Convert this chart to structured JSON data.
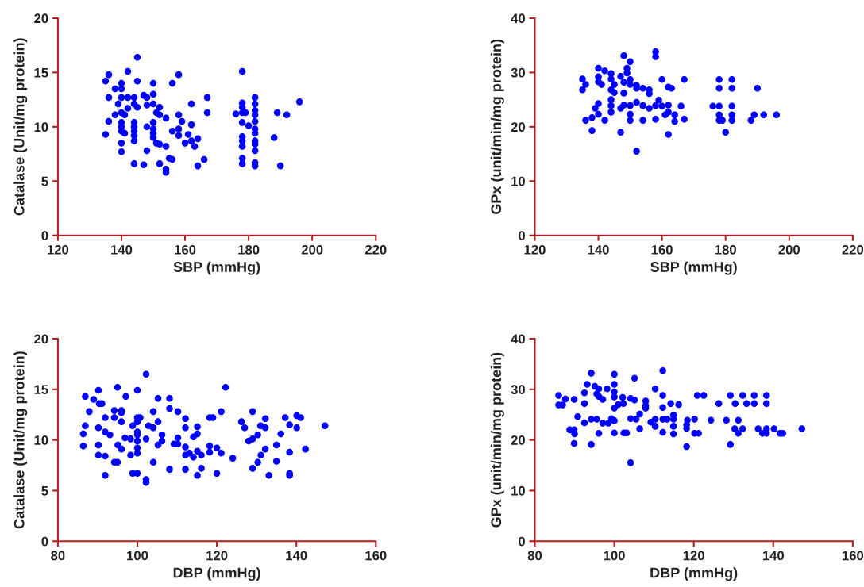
{
  "chart_data": [
    {
      "type": "scatter",
      "xlabel": "SBP (mmHg)",
      "ylabel": "Catalase (Unit/mg protein)",
      "color": "#0000ff",
      "marker": "circle",
      "xlim": [
        120,
        220
      ],
      "ylim": [
        0,
        20
      ],
      "xticks": [
        120,
        140,
        160,
        180,
        200,
        220
      ],
      "yticks": [
        0,
        5,
        10,
        15,
        20
      ],
      "x": [
        145,
        136,
        142,
        135,
        140,
        145,
        150,
        156,
        158,
        138,
        140,
        136,
        140,
        142,
        144,
        147,
        148,
        150,
        167,
        139,
        144,
        145,
        142,
        148,
        150,
        152,
        162,
        138,
        140,
        141,
        151,
        152,
        154,
        158,
        167,
        136,
        140,
        140,
        144,
        144,
        144,
        144,
        144,
        140,
        141,
        135,
        148,
        150,
        150,
        150,
        150,
        156,
        158,
        158,
        159,
        162,
        161,
        160,
        162,
        164,
        163,
        140,
        140,
        151,
        148,
        152,
        154,
        144,
        147,
        152,
        155,
        156,
        154,
        154,
        164,
        166,
        178,
        178,
        178,
        178,
        176,
        179,
        178,
        180,
        178,
        178,
        178,
        178,
        178,
        182,
        182,
        182,
        182,
        182,
        182,
        182,
        182,
        182,
        182,
        182,
        182,
        189,
        192,
        196,
        188,
        190
      ],
      "values": [
        16.4,
        14.8,
        15.1,
        14.2,
        14.0,
        14.2,
        14.0,
        14.0,
        14.8,
        13.5,
        13.5,
        12.7,
        12.7,
        12.7,
        12.7,
        12.9,
        12.7,
        13.0,
        12.7,
        12.1,
        12.1,
        11.8,
        11.7,
        12.0,
        12.1,
        11.8,
        12.1,
        11.1,
        11.3,
        11.1,
        11.3,
        11.1,
        10.8,
        11.1,
        11.3,
        10.5,
        10.4,
        10.0,
        10.4,
        10.0,
        9.6,
        9.2,
        8.7,
        9.6,
        9.4,
        9.3,
        10.0,
        10.4,
        9.8,
        9.4,
        9.0,
        9.6,
        9.8,
        9.2,
        10.5,
        10.2,
        9.3,
        8.5,
        8.7,
        8.9,
        8.2,
        8.5,
        7.7,
        8.5,
        7.8,
        8.4,
        8.2,
        6.6,
        6.5,
        6.6,
        7.1,
        7.0,
        6.1,
        5.8,
        6.4,
        7.0,
        15.1,
        12.2,
        11.8,
        11.3,
        11.2,
        11.3,
        10.4,
        10.1,
        9.1,
        8.7,
        8.2,
        7.1,
        6.6,
        12.7,
        12.1,
        11.5,
        11.1,
        10.5,
        9.8,
        9.4,
        8.7,
        8.4,
        7.8,
        6.7,
        6.4,
        11.3,
        11.1,
        12.3,
        9.0,
        6.4
      ]
    },
    {
      "type": "scatter",
      "xlabel": "SBP (mmHg)",
      "ylabel": "GPx (unit/min/mg protein)",
      "color": "#0000ff",
      "marker": "circle",
      "xlim": [
        120,
        220
      ],
      "ylim": [
        0,
        40
      ],
      "xticks": [
        120,
        140,
        160,
        180,
        200,
        220
      ],
      "yticks": [
        0,
        10,
        20,
        30,
        40
      ],
      "x": [
        158,
        158,
        148,
        150,
        140,
        142,
        144,
        149,
        149,
        147,
        135,
        140,
        140,
        141,
        144,
        145,
        148,
        150,
        150,
        152,
        152,
        154,
        156,
        156,
        160,
        162,
        163,
        167,
        135,
        136,
        144,
        145,
        148,
        140,
        139,
        140,
        138,
        136,
        142,
        144,
        144,
        144,
        147,
        148,
        150,
        152,
        150,
        150,
        154,
        156,
        158,
        159,
        160,
        162,
        161,
        162,
        164,
        164,
        166,
        167,
        158,
        154,
        138,
        147,
        162,
        152,
        178,
        178,
        176,
        178,
        178,
        178,
        179,
        180,
        182,
        182,
        182,
        182,
        182,
        190,
        188,
        189,
        192,
        196
      ],
      "values": [
        33.8,
        32.9,
        33.1,
        32.0,
        30.8,
        30.3,
        29.8,
        30.8,
        29.9,
        29.3,
        28.8,
        29.2,
        28.3,
        27.8,
        28.8,
        27.8,
        28.2,
        28.7,
        27.8,
        27.6,
        27.1,
        27.1,
        26.8,
        26.1,
        28.7,
        27.3,
        27.1,
        28.7,
        26.8,
        27.8,
        26.8,
        26.3,
        26.2,
        24.3,
        23.4,
        22.3,
        21.7,
        21.2,
        21.2,
        25.0,
        23.9,
        22.7,
        23.4,
        24.0,
        23.9,
        24.5,
        22.3,
        21.2,
        23.9,
        23.4,
        23.9,
        24.9,
        23.8,
        24.0,
        22.2,
        22.7,
        22.2,
        21.0,
        23.8,
        21.4,
        21.4,
        21.2,
        19.3,
        19.0,
        18.6,
        15.5,
        28.7,
        27.1,
        23.8,
        23.8,
        22.2,
        21.2,
        21.2,
        19.0,
        28.7,
        27.1,
        23.8,
        22.2,
        21.2,
        27.1,
        21.2,
        22.2,
        22.2,
        22.2
      ]
    },
    {
      "type": "scatter",
      "xlabel": "DBP (mmHg)",
      "ylabel": "Catalase (Unit/mg protein)",
      "color": "#0000ff",
      "marker": "circle",
      "xlim": [
        80,
        160
      ],
      "ylim": [
        0,
        20
      ],
      "xticks": [
        80,
        100,
        120,
        140,
        160
      ],
      "yticks": [
        0,
        5,
        10,
        15,
        20
      ],
      "x": [
        102.2,
        95,
        100,
        90.2,
        122.2,
        86.9,
        89,
        97.1,
        90.4,
        91.1,
        105.2,
        108.1,
        87.9,
        94.2,
        96,
        96,
        108.1,
        110.2,
        104,
        121.1,
        129,
        91.9,
        94.2,
        96,
        100,
        100.7,
        100,
        112.1,
        118.2,
        119,
        132.2,
        137.2,
        140.1,
        141.1,
        86.9,
        90.2,
        98.8,
        102.8,
        104,
        105.2,
        112.1,
        115.1,
        126.2,
        127,
        131,
        132.2,
        138.3,
        140.1,
        147.2,
        86.4,
        91.9,
        93.1,
        100,
        100,
        100,
        96.9,
        98.3,
        102.2,
        106.2,
        106.2,
        110.2,
        109.2,
        110.2,
        114.1,
        115.1,
        130.3,
        129,
        128,
        136.1,
        86.4,
        90.2,
        95.1,
        96,
        100,
        100,
        105.2,
        112.1,
        115.1,
        118.2,
        118.2,
        120,
        121.1,
        132.2,
        135,
        138.3,
        142.3,
        90.2,
        91.9,
        98.3,
        112.1,
        113.1,
        114.1,
        116.1,
        131.1,
        124,
        94.2,
        95,
        104,
        130.3,
        135,
        91.9,
        98.8,
        100,
        102.2,
        102.2,
        108.1,
        112.1,
        116.1,
        115.1,
        120,
        129,
        133.1,
        138.3,
        138.3
      ],
      "values": [
        16.5,
        15.2,
        14.9,
        14.9,
        15.2,
        14.3,
        14.0,
        14.3,
        13.6,
        13.6,
        14.1,
        14.1,
        12.8,
        12.9,
        12.9,
        12.7,
        13.1,
        12.8,
        12.8,
        12.8,
        12.8,
        12.2,
        12.2,
        11.8,
        12.2,
        12.2,
        11.8,
        12.1,
        12.2,
        12.2,
        12.1,
        12.2,
        12.4,
        12.2,
        11.4,
        11.2,
        11.4,
        11.4,
        11.2,
        11.8,
        11.2,
        11.3,
        11.8,
        11.2,
        11.4,
        11.2,
        11.5,
        11.2,
        11.4,
        10.6,
        10.8,
        10.5,
        10.8,
        10.5,
        9.9,
        10.2,
        10.1,
        10.1,
        10.5,
        9.9,
        10.2,
        9.6,
        9.6,
        10.3,
        10.6,
        10.5,
        10.1,
        9.9,
        10.6,
        9.4,
        9.5,
        9.5,
        9.1,
        9.2,
        8.7,
        9.5,
        9.3,
        8.9,
        9.4,
        8.8,
        9.2,
        8.7,
        9.1,
        9.5,
        8.8,
        9.1,
        8.5,
        8.4,
        8.5,
        8.5,
        8.7,
        8.3,
        8.5,
        8.5,
        8.2,
        7.8,
        7.8,
        7.8,
        7.8,
        7.9,
        6.5,
        6.7,
        6.7,
        6.1,
        5.8,
        7.1,
        7.1,
        7.2,
        6.5,
        6.7,
        7.2,
        6.5,
        6.7,
        6.5
      ]
    },
    {
      "type": "scatter",
      "xlabel": "DBP (mmHg)",
      "ylabel": "GPx (unit/min/mg protein)",
      "color": "#0000ff",
      "marker": "circle",
      "xlim": [
        80,
        160
      ],
      "ylim": [
        0,
        40
      ],
      "xticks": [
        80,
        100,
        120,
        140,
        160
      ],
      "yticks": [
        0,
        10,
        20,
        30,
        40
      ],
      "x": [
        112.2,
        94.2,
        100,
        105.1,
        93.2,
        100,
        95.1,
        98.2,
        110.3,
        96.1,
        92.5,
        100,
        95.6,
        96.1,
        86,
        87.7,
        89.9,
        97.1,
        100,
        102.1,
        104.1,
        105.1,
        107.9,
        112.2,
        120.9,
        122.5,
        129.2,
        132.3,
        135.2,
        138.3,
        86,
        87,
        92.5,
        101,
        102.3,
        107.9,
        107.9,
        114.2,
        116.2,
        126.3,
        130.4,
        133.3,
        135.2,
        138.3,
        100,
        112.2,
        106.4,
        114.9,
        90.8,
        94.2,
        92.5,
        95.6,
        97.1,
        98.5,
        99.3,
        100,
        104.1,
        105.5,
        109.2,
        110.3,
        112.2,
        113.3,
        114.9,
        118.4,
        120.2,
        124.3,
        128.2,
        131.2,
        110.3,
        114.9,
        118.2,
        118.2,
        88.8,
        89.9,
        106.4,
        130.3,
        132.3,
        136.2,
        138.3,
        140.2,
        100,
        96.1,
        102.4,
        103.1,
        90,
        112.2,
        114.9,
        120.2,
        121.2,
        131.2,
        137.3,
        138.3,
        141.7,
        142.4,
        147.2,
        89.9,
        94.2,
        129.2,
        118.2,
        104.1
      ],
      "values": [
        33.7,
        33.2,
        33.0,
        32.2,
        31.0,
        31.0,
        30.6,
        30.1,
        30.1,
        30.1,
        29.3,
        29.5,
        29.1,
        28.6,
        28.8,
        28.1,
        28.0,
        28.0,
        28.5,
        28.4,
        28.2,
        27.9,
        27.7,
        28.8,
        28.8,
        28.8,
        28.8,
        28.8,
        28.8,
        28.8,
        26.9,
        26.9,
        27.2,
        27.0,
        27.2,
        26.8,
        26.3,
        27.2,
        27.0,
        27.2,
        27.2,
        27.2,
        27.2,
        27.2,
        26.3,
        26.4,
        25.1,
        24.9,
        24.6,
        24.1,
        23.4,
        24.1,
        23.3,
        23.3,
        24.2,
        23.8,
        24.2,
        24.1,
        23.5,
        24.1,
        24.1,
        24.1,
        24.1,
        23.9,
        24.1,
        23.9,
        23.9,
        23.9,
        22.7,
        22.7,
        23.0,
        22.3,
        22.0,
        22.0,
        22.2,
        22.2,
        22.2,
        22.2,
        22.2,
        22.2,
        21.4,
        21.3,
        21.4,
        21.4,
        21.2,
        21.5,
        21.2,
        21.3,
        21.3,
        21.3,
        21.3,
        21.3,
        21.3,
        21.3,
        22.2,
        19.3,
        19.1,
        19.1,
        18.7,
        15.5
      ]
    }
  ]
}
